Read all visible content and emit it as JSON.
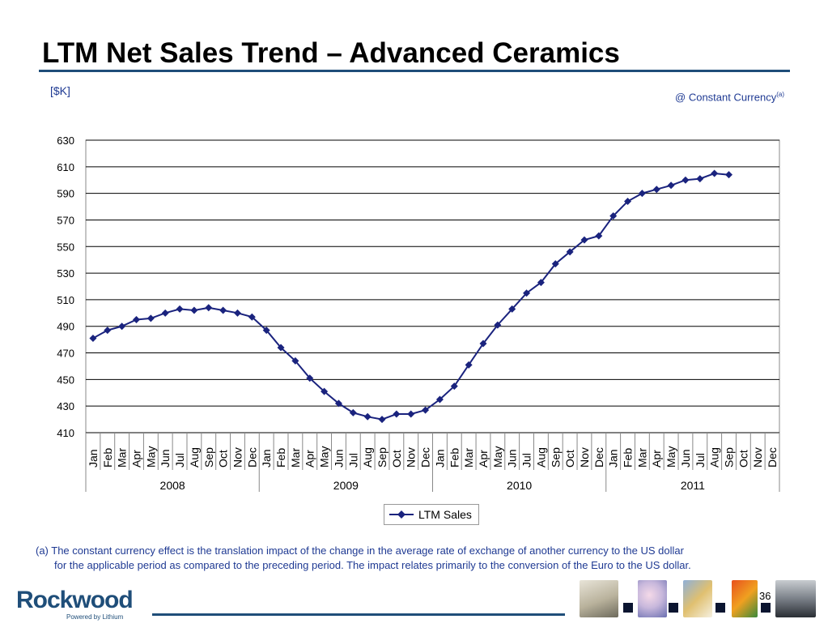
{
  "header": {
    "title": "LTM Net Sales Trend – Advanced Ceramics",
    "units": "[$K]",
    "currency_note": "@ Constant Currency",
    "currency_note_sup": "(a)"
  },
  "chart_data": {
    "type": "line",
    "title": "",
    "xlabel": "",
    "ylabel": "",
    "ylim": [
      410,
      630
    ],
    "yticks": [
      410,
      430,
      450,
      470,
      490,
      510,
      530,
      550,
      570,
      590,
      610,
      630
    ],
    "grid": true,
    "legend_position": "bottom-center",
    "months": [
      "Jan",
      "Feb",
      "Mar",
      "Apr",
      "May",
      "Jun",
      "Jul",
      "Aug",
      "Sep",
      "Oct",
      "Nov",
      "Dec"
    ],
    "years": [
      "2008",
      "2009",
      "2010",
      "2011"
    ],
    "series": [
      {
        "name": "LTM Sales",
        "color": "#1a237e",
        "marker": "diamond",
        "values": [
          481,
          487,
          490,
          495,
          496,
          500,
          503,
          502,
          504,
          502,
          500,
          497,
          487,
          474,
          464,
          451,
          441,
          432,
          425,
          422,
          420,
          424,
          424,
          427,
          435,
          445,
          461,
          477,
          491,
          503,
          515,
          523,
          537,
          546,
          555,
          558,
          573,
          584,
          590,
          593,
          596,
          600,
          601,
          605,
          604
        ]
      }
    ]
  },
  "footnote": {
    "line1": "(a) The constant currency effect is the translation impact of the change in the average rate of exchange of another currency to the  US dollar",
    "line2": "for the applicable period as compared to the preceding period.  The impact relates primarily to the conversion of the Euro to the US dollar."
  },
  "footer": {
    "logo_text": "Rockwood",
    "logo_sub": "Powered by Lithium",
    "page_number": "36"
  },
  "colors": {
    "accent": "#1f4e79",
    "series": "#1a237e",
    "note_text": "#1f3a93"
  }
}
